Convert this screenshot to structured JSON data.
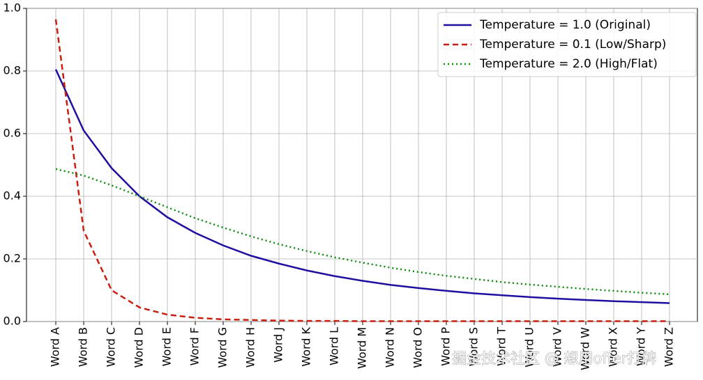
{
  "chart_data": {
    "type": "line",
    "categories": [
      "Word A",
      "Word B",
      "Word C",
      "Word D",
      "Word E",
      "Word F",
      "Word G",
      "Word H",
      "Word J",
      "Word K",
      "Word L",
      "Word M",
      "Word N",
      "Word O",
      "Word P",
      "Word S",
      "Word T",
      "Word U",
      "Word V",
      "Word W",
      "Word X",
      "Word Y",
      "Word Z"
    ],
    "series": [
      {
        "name": "Temperature = 1.0 (Original)",
        "color": "#1f0fa0",
        "style": "solid",
        "values": [
          0.805,
          0.61,
          0.49,
          0.4,
          0.333,
          0.283,
          0.243,
          0.21,
          0.185,
          0.163,
          0.145,
          0.13,
          0.117,
          0.107,
          0.098,
          0.09,
          0.084,
          0.078,
          0.073,
          0.069,
          0.065,
          0.062,
          0.059
        ]
      },
      {
        "name": "Temperature = 0.1 (Low/Sharp)",
        "color": "#c81e0f",
        "style": "dashed",
        "values": [
          0.965,
          0.29,
          0.1,
          0.045,
          0.022,
          0.012,
          0.007,
          0.005,
          0.003,
          0.002,
          0.002,
          0.001,
          0.001,
          0.001,
          0.001,
          0.001,
          0.001,
          0.001,
          0.001,
          0.001,
          0.001,
          0.001,
          0.001
        ]
      },
      {
        "name": "Temperature = 2.0 (High/Flat)",
        "color": "#0a8a0a",
        "style": "dotted",
        "values": [
          0.487,
          0.466,
          0.435,
          0.4,
          0.365,
          0.33,
          0.3,
          0.272,
          0.247,
          0.225,
          0.205,
          0.188,
          0.172,
          0.158,
          0.146,
          0.136,
          0.126,
          0.118,
          0.111,
          0.104,
          0.098,
          0.092,
          0.087
        ]
      }
    ],
    "ylim": [
      0,
      1
    ],
    "yticks": [
      {
        "value": 0,
        "label": "0.0"
      },
      0.2,
      0.4,
      0.6,
      0.8,
      {
        "value": 1,
        "label": "1.0"
      }
    ],
    "grid": true,
    "legend": "upper right",
    "watermark": "掘金技术社区 @ 想用offer打牌"
  }
}
